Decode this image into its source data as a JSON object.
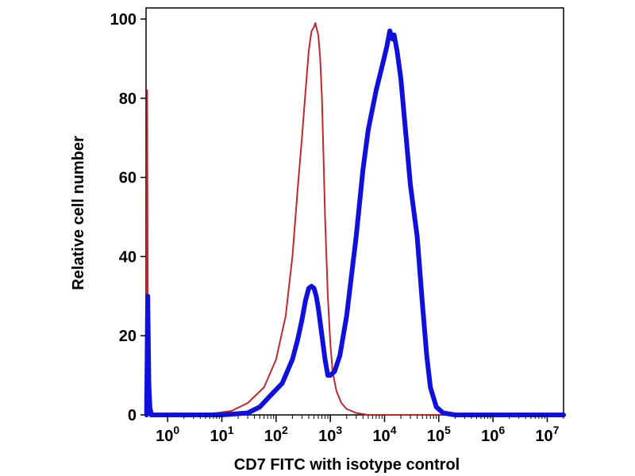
{
  "chart_data": {
    "type": "line",
    "title": "",
    "xlabel": "CD7 FITC with isotype control",
    "ylabel": "Relative cell number",
    "x_scale": "log",
    "xlim": [
      0.4,
      20000000
    ],
    "ylim": [
      0,
      100
    ],
    "x_ticks": [
      {
        "value": 1,
        "base": "10",
        "exp": "0"
      },
      {
        "value": 10,
        "base": "10",
        "exp": "1"
      },
      {
        "value": 100,
        "base": "10",
        "exp": "2"
      },
      {
        "value": 1000,
        "base": "10",
        "exp": "3"
      },
      {
        "value": 10000,
        "base": "10",
        "exp": "4"
      },
      {
        "value": 100000,
        "base": "10",
        "exp": "5"
      },
      {
        "value": 1000000,
        "base": "10",
        "exp": "6"
      },
      {
        "value": 10000000,
        "base": "10",
        "exp": "7"
      }
    ],
    "y_ticks": [
      {
        "value": 0,
        "label": "0"
      },
      {
        "value": 20,
        "label": "20"
      },
      {
        "value": 40,
        "label": "40"
      },
      {
        "value": 60,
        "label": "60"
      },
      {
        "value": 80,
        "label": "80"
      },
      {
        "value": 100,
        "label": "100"
      }
    ],
    "grid": false,
    "legend": "none",
    "series": [
      {
        "color": "#c0282e",
        "line_width": 2,
        "x": [
          0.41,
          0.42,
          0.43,
          0.45,
          0.47,
          0.5,
          0.6,
          1,
          3,
          8,
          15,
          30,
          60,
          100,
          150,
          200,
          250,
          300,
          350,
          400,
          450,
          500,
          530,
          550,
          600,
          650,
          700,
          750,
          800,
          900,
          1000,
          1100,
          1300,
          1600,
          2000,
          3000,
          5000,
          10000,
          100000,
          20000000
        ],
        "y": [
          0,
          82,
          30,
          18,
          5,
          0,
          0,
          0,
          0,
          0.5,
          1,
          3,
          7,
          14,
          25,
          40,
          57,
          70,
          82,
          92,
          97,
          98,
          99,
          98,
          96,
          90,
          80,
          65,
          50,
          30,
          18,
          11,
          6,
          3,
          1.5,
          0.5,
          0,
          0,
          0,
          0
        ]
      },
      {
        "color": "#1010dd",
        "line_width": 6,
        "x": [
          0.41,
          0.43,
          0.45,
          0.47,
          0.5,
          1,
          10,
          30,
          50,
          80,
          130,
          200,
          250,
          300,
          350,
          400,
          450,
          500,
          550,
          600,
          700,
          800,
          900,
          1000,
          1200,
          1500,
          2000,
          3000,
          4000,
          5000,
          7000,
          9000,
          11000,
          12500,
          14000,
          15000,
          17000,
          20000,
          25000,
          30000,
          40000,
          50000,
          60000,
          70000,
          90000,
          120000,
          200000,
          1000000,
          20000000
        ],
        "y": [
          0,
          30,
          8,
          2,
          0,
          0,
          0,
          0.5,
          2,
          5,
          8,
          14,
          19,
          24,
          29,
          32,
          32.5,
          32,
          30,
          27,
          20,
          14,
          10,
          10,
          11,
          15,
          25,
          45,
          62,
          72,
          82,
          88,
          93,
          97,
          95,
          96,
          92,
          85,
          70,
          58,
          45,
          28,
          15,
          7,
          2,
          0.5,
          0,
          0,
          0
        ]
      }
    ]
  }
}
